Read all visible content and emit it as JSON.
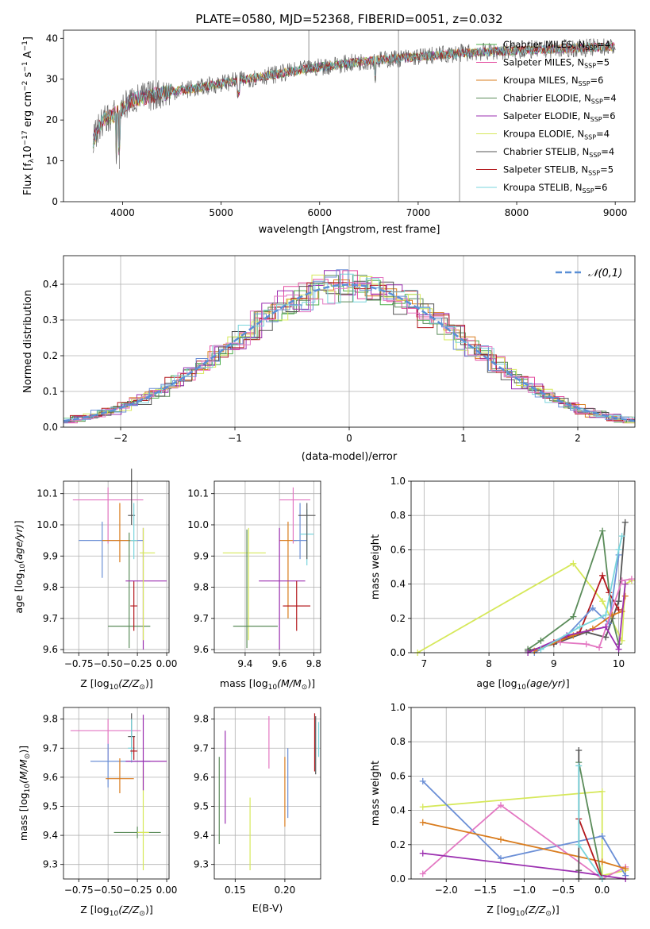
{
  "figure_title": "PLATE=0580, MJD=52368, FIBERID=0051, z=0.032",
  "chart_data": [
    {
      "id": "spectrum",
      "type": "line",
      "xlabel": "wavelength [Angstrom, rest frame]",
      "ylabel": "Flux [f_λ 10^-17 erg cm^-2 s^-1 A^-1]",
      "xlim": [
        3400,
        9200
      ],
      "ylim": [
        0,
        42
      ],
      "xticks": [
        4000,
        5000,
        6000,
        7000,
        8000,
        9000
      ],
      "yticks": [
        0,
        10,
        20,
        30,
        40
      ],
      "grid": false,
      "legend_position": "top-right",
      "continuum": {
        "x": [
          3700,
          3800,
          3900,
          4000,
          4100,
          4300,
          4500,
          4800,
          5000,
          5500,
          6000,
          6500,
          7000,
          7500,
          8000,
          8500,
          9000
        ],
        "y": [
          15,
          20,
          21,
          23,
          25,
          26,
          27,
          28,
          29,
          31,
          33,
          34.5,
          35.5,
          36.5,
          37,
          37.5,
          38
        ]
      },
      "features": [
        {
          "x": 3934,
          "y": 12
        },
        {
          "x": 3968,
          "y": 8
        },
        {
          "x": 4340,
          "y": 42
        },
        {
          "x": 6800,
          "y": 0
        },
        {
          "x": 6800,
          "y": 42
        },
        {
          "x": 7420,
          "y": 0
        },
        {
          "x": 5890,
          "y": 42
        }
      ],
      "legend": [
        {
          "name": "Chabrier MILES",
          "n": "4",
          "color": "#4daf4a"
        },
        {
          "name": "Salpeter MILES",
          "n": "5",
          "color": "#e34a9e"
        },
        {
          "name": "Kroupa MILES",
          "n": "6",
          "color": "#d97c1e"
        },
        {
          "name": "Chabrier ELODIE",
          "n": "4",
          "color": "#5b8c5a"
        },
        {
          "name": "Salpeter ELODIE",
          "n": "6",
          "color": "#9b2fb0"
        },
        {
          "name": "Kroupa ELODIE",
          "n": "4",
          "color": "#d6e85a"
        },
        {
          "name": "Chabrier STELIB",
          "n": "4",
          "color": "#555555"
        },
        {
          "name": "Salpeter STELIB",
          "n": "5",
          "color": "#b3181d"
        },
        {
          "name": "Kroupa STELIB",
          "n": "6",
          "color": "#79d4dc"
        }
      ]
    },
    {
      "id": "residuals",
      "type": "line",
      "xlabel": "(data-model)/error",
      "ylabel": "Normed distribution",
      "xlim": [
        -2.5,
        2.5
      ],
      "ylim": [
        0,
        0.48
      ],
      "xticks": [
        -2,
        -1,
        0,
        1,
        2
      ],
      "yticks": [
        0.0,
        0.1,
        0.2,
        0.3,
        0.4
      ],
      "grid": true,
      "legend_position": "top-right",
      "legend": "𝒩(0,1)",
      "gauss_color": "#5a8fd6",
      "histogram_colors": [
        "#4daf4a",
        "#e34a9e",
        "#d97c1e",
        "#5b8c5a",
        "#9b2fb0",
        "#d6e85a",
        "#555555",
        "#b3181d",
        "#79d4dc",
        "#6b8fd6",
        "#e377c2"
      ]
    },
    {
      "id": "age_vs_Z",
      "type": "scatter",
      "xlabel": "Z [log10(Z/Z⊙)]",
      "ylabel": "age [log10(age/yr)]",
      "xlim": [
        -0.88,
        0.02
      ],
      "ylim": [
        9.59,
        10.14
      ],
      "xticks": [
        -0.75,
        -0.5,
        -0.25,
        0.0
      ],
      "yticks": [
        9.6,
        9.7,
        9.8,
        9.9,
        10.0,
        10.1
      ],
      "grid": true,
      "points": [
        {
          "x": -0.5,
          "y": 10.08,
          "xerr": [
            0.3,
            0.3
          ],
          "yerr": [
            0.14,
            0.04
          ],
          "color": "#e377c2"
        },
        {
          "x": -0.55,
          "y": 9.95,
          "xerr": [
            0.2,
            0.35
          ],
          "yerr": [
            0.12,
            0.06
          ],
          "color": "#6b8fd6"
        },
        {
          "x": -0.4,
          "y": 9.95,
          "xerr": [
            0.15,
            0.15
          ],
          "yerr": [
            0.07,
            0.12
          ],
          "color": "#d97c1e"
        },
        {
          "x": -0.3,
          "y": 10.03,
          "xerr": [
            0.03,
            0.03
          ],
          "yerr": [
            0.03,
            0.15
          ],
          "color": "#555555"
        },
        {
          "x": -0.28,
          "y": 9.95,
          "xerr": [
            0.03,
            0.03
          ],
          "yerr": [
            0.06,
            0.12
          ],
          "color": "#79d4dc"
        },
        {
          "x": -0.32,
          "y": 9.675,
          "xerr": [
            0.18,
            0.18
          ],
          "yerr": [
            0.07,
            0.3
          ],
          "color": "#5b8c5a"
        },
        {
          "x": -0.28,
          "y": 9.74,
          "xerr": [
            0.03,
            0.03
          ],
          "yerr": [
            0.08,
            0.08
          ],
          "color": "#b3181d"
        },
        {
          "x": -0.2,
          "y": 9.82,
          "xerr": [
            0.15,
            0.2
          ],
          "yerr": [
            0.22,
            0.17
          ],
          "color": "#9b2fb0"
        },
        {
          "x": -0.2,
          "y": 9.91,
          "xerr": [
            0.03,
            0.1
          ],
          "yerr": [
            0.28,
            0.08
          ],
          "color": "#d6e85a"
        }
      ]
    },
    {
      "id": "age_vs_mass",
      "type": "scatter",
      "xlabel": "mass [log10(M/M⊙)]",
      "ylabel": "",
      "xlim": [
        9.22,
        9.84
      ],
      "ylim": [
        9.59,
        10.14
      ],
      "xticks": [
        9.4,
        9.6,
        9.8
      ],
      "yticks": [
        9.6,
        9.7,
        9.8,
        9.9,
        10.0,
        10.1
      ],
      "grid": true,
      "points": [
        {
          "x": 9.42,
          "y": 9.91,
          "xerr": [
            0.15,
            0.1
          ],
          "yerr": [
            0.28,
            0.08
          ],
          "color": "#d6e85a"
        },
        {
          "x": 9.41,
          "y": 9.675,
          "xerr": [
            0.08,
            0.18
          ],
          "yerr": [
            0.07,
            0.31
          ],
          "color": "#5b8c5a"
        },
        {
          "x": 9.65,
          "y": 9.95,
          "xerr": [
            0.05,
            0.05
          ],
          "yerr": [
            0.25,
            0.06
          ],
          "color": "#d97c1e"
        },
        {
          "x": 9.68,
          "y": 10.08,
          "xerr": [
            0.08,
            0.1
          ],
          "yerr": [
            0.14,
            0.04
          ],
          "color": "#e377c2"
        },
        {
          "x": 9.6,
          "y": 9.82,
          "xerr": [
            0.12,
            0.15
          ],
          "yerr": [
            0.22,
            0.17
          ],
          "color": "#9b2fb0"
        },
        {
          "x": 9.7,
          "y": 9.74,
          "xerr": [
            0.08,
            0.08
          ],
          "yerr": [
            0.08,
            0.08
          ],
          "color": "#b3181d"
        },
        {
          "x": 9.72,
          "y": 9.95,
          "xerr": [
            0.04,
            0.04
          ],
          "yerr": [
            0.06,
            0.12
          ],
          "color": "#6b8fd6"
        },
        {
          "x": 9.76,
          "y": 9.97,
          "xerr": [
            0.04,
            0.04
          ],
          "yerr": [
            0.1,
            0.08
          ],
          "color": "#79d4dc"
        },
        {
          "x": 9.76,
          "y": 10.03,
          "xerr": [
            0.05,
            0.05
          ],
          "yerr": [
            0.14,
            0.04
          ],
          "color": "#555555"
        }
      ]
    },
    {
      "id": "weight_vs_age",
      "type": "line",
      "xlabel": "age [log10(age/yr)]",
      "ylabel": "mass weight",
      "xlim": [
        6.8,
        10.25
      ],
      "ylim": [
        0,
        1.0
      ],
      "xticks": [
        7,
        8,
        9,
        10
      ],
      "yticks": [
        0.0,
        0.2,
        0.4,
        0.6,
        0.8,
        1.0
      ],
      "grid": true,
      "series": [
        {
          "color": "#d6e85a",
          "x": [
            6.9,
            9.3,
            9.75,
            10.05,
            10.1,
            10.2
          ],
          "y": [
            0.0,
            0.52,
            0.3,
            0.07,
            0.4,
            0.42
          ]
        },
        {
          "color": "#5b8c5a",
          "x": [
            8.6,
            8.8,
            9.3,
            9.75,
            9.9,
            10.0
          ],
          "y": [
            0.02,
            0.07,
            0.21,
            0.71,
            0.2,
            0.05
          ]
        },
        {
          "color": "#555555",
          "x": [
            8.6,
            9.0,
            9.5,
            9.8,
            10.0,
            10.1
          ],
          "y": [
            0.01,
            0.05,
            0.12,
            0.09,
            0.3,
            0.76
          ]
        },
        {
          "color": "#b3181d",
          "x": [
            8.7,
            9.0,
            9.4,
            9.75,
            9.85,
            10.0
          ],
          "y": [
            0.01,
            0.06,
            0.12,
            0.45,
            0.35,
            0.25
          ]
        },
        {
          "color": "#6b8fd6",
          "x": [
            8.7,
            9.2,
            9.6,
            9.85,
            10.0
          ],
          "y": [
            0.0,
            0.1,
            0.26,
            0.17,
            0.57
          ]
        },
        {
          "color": "#d97c1e",
          "x": [
            8.7,
            9.3,
            9.6,
            9.9,
            10.05,
            10.1
          ],
          "y": [
            0.01,
            0.1,
            0.14,
            0.22,
            0.24,
            0.33
          ]
        },
        {
          "color": "#e377c2",
          "x": [
            9.1,
            9.5,
            9.7,
            10.05,
            10.2
          ],
          "y": [
            0.06,
            0.05,
            0.03,
            0.42,
            0.43
          ]
        },
        {
          "color": "#9b2fb0",
          "x": [
            8.6,
            9.2,
            9.8,
            10.0,
            10.1
          ],
          "y": [
            0.0,
            0.1,
            0.15,
            0.02,
            0.4
          ]
        },
        {
          "color": "#79d4dc",
          "x": [
            8.8,
            9.4,
            9.8,
            10.0,
            10.05
          ],
          "y": [
            0.02,
            0.15,
            0.22,
            0.6,
            0.68
          ]
        }
      ]
    },
    {
      "id": "mass_vs_Z",
      "type": "scatter",
      "xlabel": "Z [log10(Z/Z⊙)]",
      "ylabel": "mass [log10(M/M⊙)]",
      "xlim": [
        -0.88,
        0.02
      ],
      "ylim": [
        9.25,
        9.84
      ],
      "xticks": [
        -0.75,
        -0.5,
        -0.25,
        0.0
      ],
      "yticks": [
        9.3,
        9.4,
        9.5,
        9.6,
        9.7,
        9.8
      ],
      "grid": true,
      "points": [
        {
          "x": -0.5,
          "y": 9.76,
          "xerr": [
            0.32,
            0.28
          ],
          "yerr": [
            0.1,
            0.04
          ],
          "color": "#e377c2"
        },
        {
          "x": -0.5,
          "y": 9.655,
          "xerr": [
            0.15,
            0.36
          ],
          "yerr": [
            0.09,
            0.06
          ],
          "color": "#6b8fd6"
        },
        {
          "x": -0.4,
          "y": 9.595,
          "xerr": [
            0.12,
            0.12
          ],
          "yerr": [
            0.05,
            0.07
          ],
          "color": "#d97c1e"
        },
        {
          "x": -0.3,
          "y": 9.74,
          "xerr": [
            0.03,
            0.03
          ],
          "yerr": [
            0.06,
            0.08
          ],
          "color": "#555555"
        },
        {
          "x": -0.3,
          "y": 9.7,
          "xerr": [
            0.03,
            0.03
          ],
          "yerr": [
            0.05,
            0.1
          ],
          "color": "#79d4dc"
        },
        {
          "x": -0.28,
          "y": 9.69,
          "xerr": [
            0.03,
            0.03
          ],
          "yerr": [
            0.03,
            0.05
          ],
          "color": "#b3181d"
        },
        {
          "x": -0.25,
          "y": 9.41,
          "xerr": [
            0.2,
            0.2
          ],
          "yerr": [
            0.02,
            0.02
          ],
          "color": "#5b8c5a"
        },
        {
          "x": -0.2,
          "y": 9.41,
          "xerr": [
            0.05,
            0.05
          ],
          "yerr": [
            0.13,
            0.23
          ],
          "color": "#d6e85a"
        },
        {
          "x": -0.2,
          "y": 9.655,
          "xerr": [
            0.15,
            0.2
          ],
          "yerr": [
            0.1,
            0.16
          ],
          "color": "#9b2fb0"
        }
      ]
    },
    {
      "id": "mass_vs_ebv",
      "type": "scatter",
      "xlabel": "E(B-V)",
      "ylabel": "",
      "xlim": [
        0.129,
        0.236
      ],
      "ylim": [
        9.25,
        9.84
      ],
      "xticks": [
        0.15,
        0.2
      ],
      "yticks": [
        9.3,
        9.4,
        9.5,
        9.6,
        9.7,
        9.8
      ],
      "grid": true,
      "points": [
        {
          "x": 0.134,
          "y": 9.52,
          "yerr": [
            0.15,
            0.15
          ],
          "color": "#5b8c5a"
        },
        {
          "x": 0.14,
          "y": 9.6,
          "yerr": [
            0.16,
            0.16
          ],
          "color": "#9b2fb0"
        },
        {
          "x": 0.165,
          "y": 9.41,
          "yerr": [
            0.13,
            0.12
          ],
          "color": "#d6e85a"
        },
        {
          "x": 0.184,
          "y": 9.72,
          "yerr": [
            0.09,
            0.09
          ],
          "color": "#e377c2"
        },
        {
          "x": 0.2,
          "y": 9.55,
          "yerr": [
            0.12,
            0.12
          ],
          "color": "#d97c1e"
        },
        {
          "x": 0.203,
          "y": 9.58,
          "yerr": [
            0.12,
            0.12
          ],
          "color": "#6b8fd6"
        },
        {
          "x": 0.23,
          "y": 9.72,
          "yerr": [
            0.1,
            0.1
          ],
          "color": "#b3181d"
        },
        {
          "x": 0.231,
          "y": 9.71,
          "yerr": [
            0.1,
            0.1
          ],
          "color": "#555555"
        },
        {
          "x": 0.234,
          "y": 9.73,
          "yerr": [
            0.06,
            0.06
          ],
          "color": "#79d4dc"
        }
      ]
    },
    {
      "id": "weight_vs_Z",
      "type": "line",
      "xlabel": "Z [log10(Z/Z⊙)]",
      "ylabel": "mass weight",
      "xlim": [
        -2.45,
        0.42
      ],
      "ylim": [
        0,
        1.0
      ],
      "xticks": [
        -2.0,
        -1.5,
        -1.0,
        -0.5,
        0.0
      ],
      "yticks": [
        0.0,
        0.2,
        0.4,
        0.6,
        0.8,
        1.0
      ],
      "grid": true,
      "series": [
        {
          "color": "#d6e85a",
          "x": [
            -2.3,
            0.0,
            0.0,
            0.3
          ],
          "y": [
            0.42,
            0.51,
            0.02,
            0.05
          ]
        },
        {
          "color": "#6b8fd6",
          "x": [
            -2.3,
            -1.3,
            0.0,
            0.3
          ],
          "y": [
            0.57,
            0.12,
            0.25,
            0.02
          ]
        },
        {
          "color": "#e377c2",
          "x": [
            -2.3,
            -1.3,
            0.0,
            0.3
          ],
          "y": [
            0.03,
            0.43,
            0.0,
            0.07
          ]
        },
        {
          "color": "#d97c1e",
          "x": [
            -2.3,
            -1.3,
            0.0,
            0.3
          ],
          "y": [
            0.33,
            0.23,
            0.1,
            0.06
          ]
        },
        {
          "color": "#9b2fb0",
          "x": [
            -2.3,
            -0.3,
            0.3
          ],
          "y": [
            0.15,
            0.04,
            0.0
          ]
        },
        {
          "color": "#5b8c5a",
          "x": [
            -0.3,
            0.0
          ],
          "y": [
            0.68,
            0.0
          ]
        },
        {
          "color": "#555555",
          "x": [
            -0.3,
            -0.3,
            -0.3
          ],
          "y": [
            0.75,
            0.05,
            0.0
          ]
        },
        {
          "color": "#b3181d",
          "x": [
            -0.3,
            0.0
          ],
          "y": [
            0.35,
            0.0
          ]
        },
        {
          "color": "#79d4dc",
          "x": [
            -0.3,
            -0.3,
            0.0
          ],
          "y": [
            0.66,
            0.2,
            0.0
          ]
        }
      ]
    }
  ]
}
